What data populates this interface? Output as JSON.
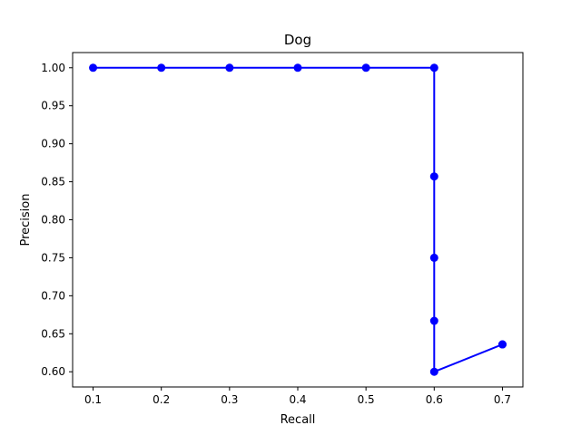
{
  "chart_data": {
    "type": "line",
    "title": "Dog",
    "xlabel": "Recall",
    "ylabel": "Precision",
    "xlim": [
      0.07,
      0.73
    ],
    "ylim": [
      0.58,
      1.02
    ],
    "x_ticks": [
      0.1,
      0.2,
      0.3,
      0.4,
      0.5,
      0.6,
      0.7
    ],
    "x_tick_labels": [
      "0.1",
      "0.2",
      "0.3",
      "0.4",
      "0.5",
      "0.6",
      "0.7"
    ],
    "y_ticks": [
      0.6,
      0.65,
      0.7,
      0.75,
      0.8,
      0.85,
      0.9,
      0.95,
      1.0
    ],
    "y_tick_labels": [
      "0.60",
      "0.65",
      "0.70",
      "0.75",
      "0.80",
      "0.85",
      "0.90",
      "0.95",
      "1.00"
    ],
    "grid": false,
    "series": [
      {
        "color": "#0000ff",
        "marker": "circle",
        "points": [
          {
            "x": 0.1,
            "y": 1.0
          },
          {
            "x": 0.2,
            "y": 1.0
          },
          {
            "x": 0.3,
            "y": 1.0
          },
          {
            "x": 0.4,
            "y": 1.0
          },
          {
            "x": 0.5,
            "y": 1.0
          },
          {
            "x": 0.6,
            "y": 1.0
          },
          {
            "x": 0.6,
            "y": 0.857
          },
          {
            "x": 0.6,
            "y": 0.75
          },
          {
            "x": 0.6,
            "y": 0.667
          },
          {
            "x": 0.6,
            "y": 0.6
          },
          {
            "x": 0.7,
            "y": 0.636
          },
          {
            "x": 0.7,
            "y": 0.636
          }
        ]
      }
    ]
  }
}
